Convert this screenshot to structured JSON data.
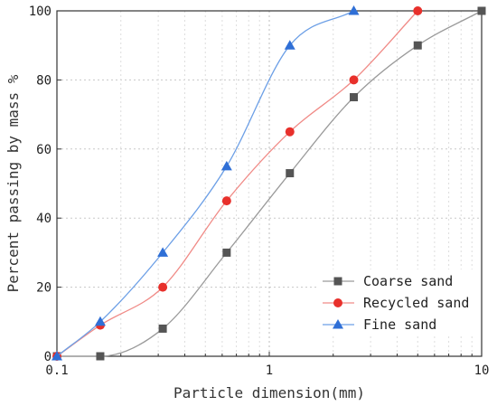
{
  "chart_data": {
    "type": "line",
    "xscale": "log",
    "xlim": [
      0.1,
      10
    ],
    "ylim": [
      0,
      100
    ],
    "xticks": [
      0.1,
      1,
      10
    ],
    "xtick_labels": [
      "0.1",
      "1",
      "10"
    ],
    "yticks": [
      0,
      20,
      40,
      60,
      80,
      100
    ],
    "ytick_labels": [
      "0",
      "20",
      "40",
      "60",
      "80",
      "100"
    ],
    "xlabel": "Particle dimension(mm)",
    "ylabel": "Percent passing by mass %",
    "grid": "dotted",
    "legend_position": "bottom-right",
    "series": [
      {
        "name": "Coarse sand",
        "marker": "square",
        "color": "#555555",
        "line_color": "#9a9a9a",
        "x": [
          0.1,
          0.16,
          0.315,
          0.63,
          1.25,
          2.5,
          5,
          10
        ],
        "y": [
          0,
          0,
          8,
          30,
          53,
          75,
          90,
          100
        ]
      },
      {
        "name": "Recycled sand",
        "marker": "circle",
        "color": "#e8302b",
        "line_color": "#f08a86",
        "x": [
          0.1,
          0.16,
          0.315,
          0.63,
          1.25,
          2.5,
          5
        ],
        "y": [
          0,
          9,
          20,
          45,
          65,
          80,
          100
        ]
      },
      {
        "name": "Fine sand",
        "marker": "triangle",
        "color": "#2f6fd6",
        "line_color": "#6c9fe6",
        "x": [
          0.1,
          0.16,
          0.315,
          0.63,
          1.25,
          2.5
        ],
        "y": [
          0,
          10,
          30,
          55,
          90,
          100
        ]
      }
    ]
  }
}
